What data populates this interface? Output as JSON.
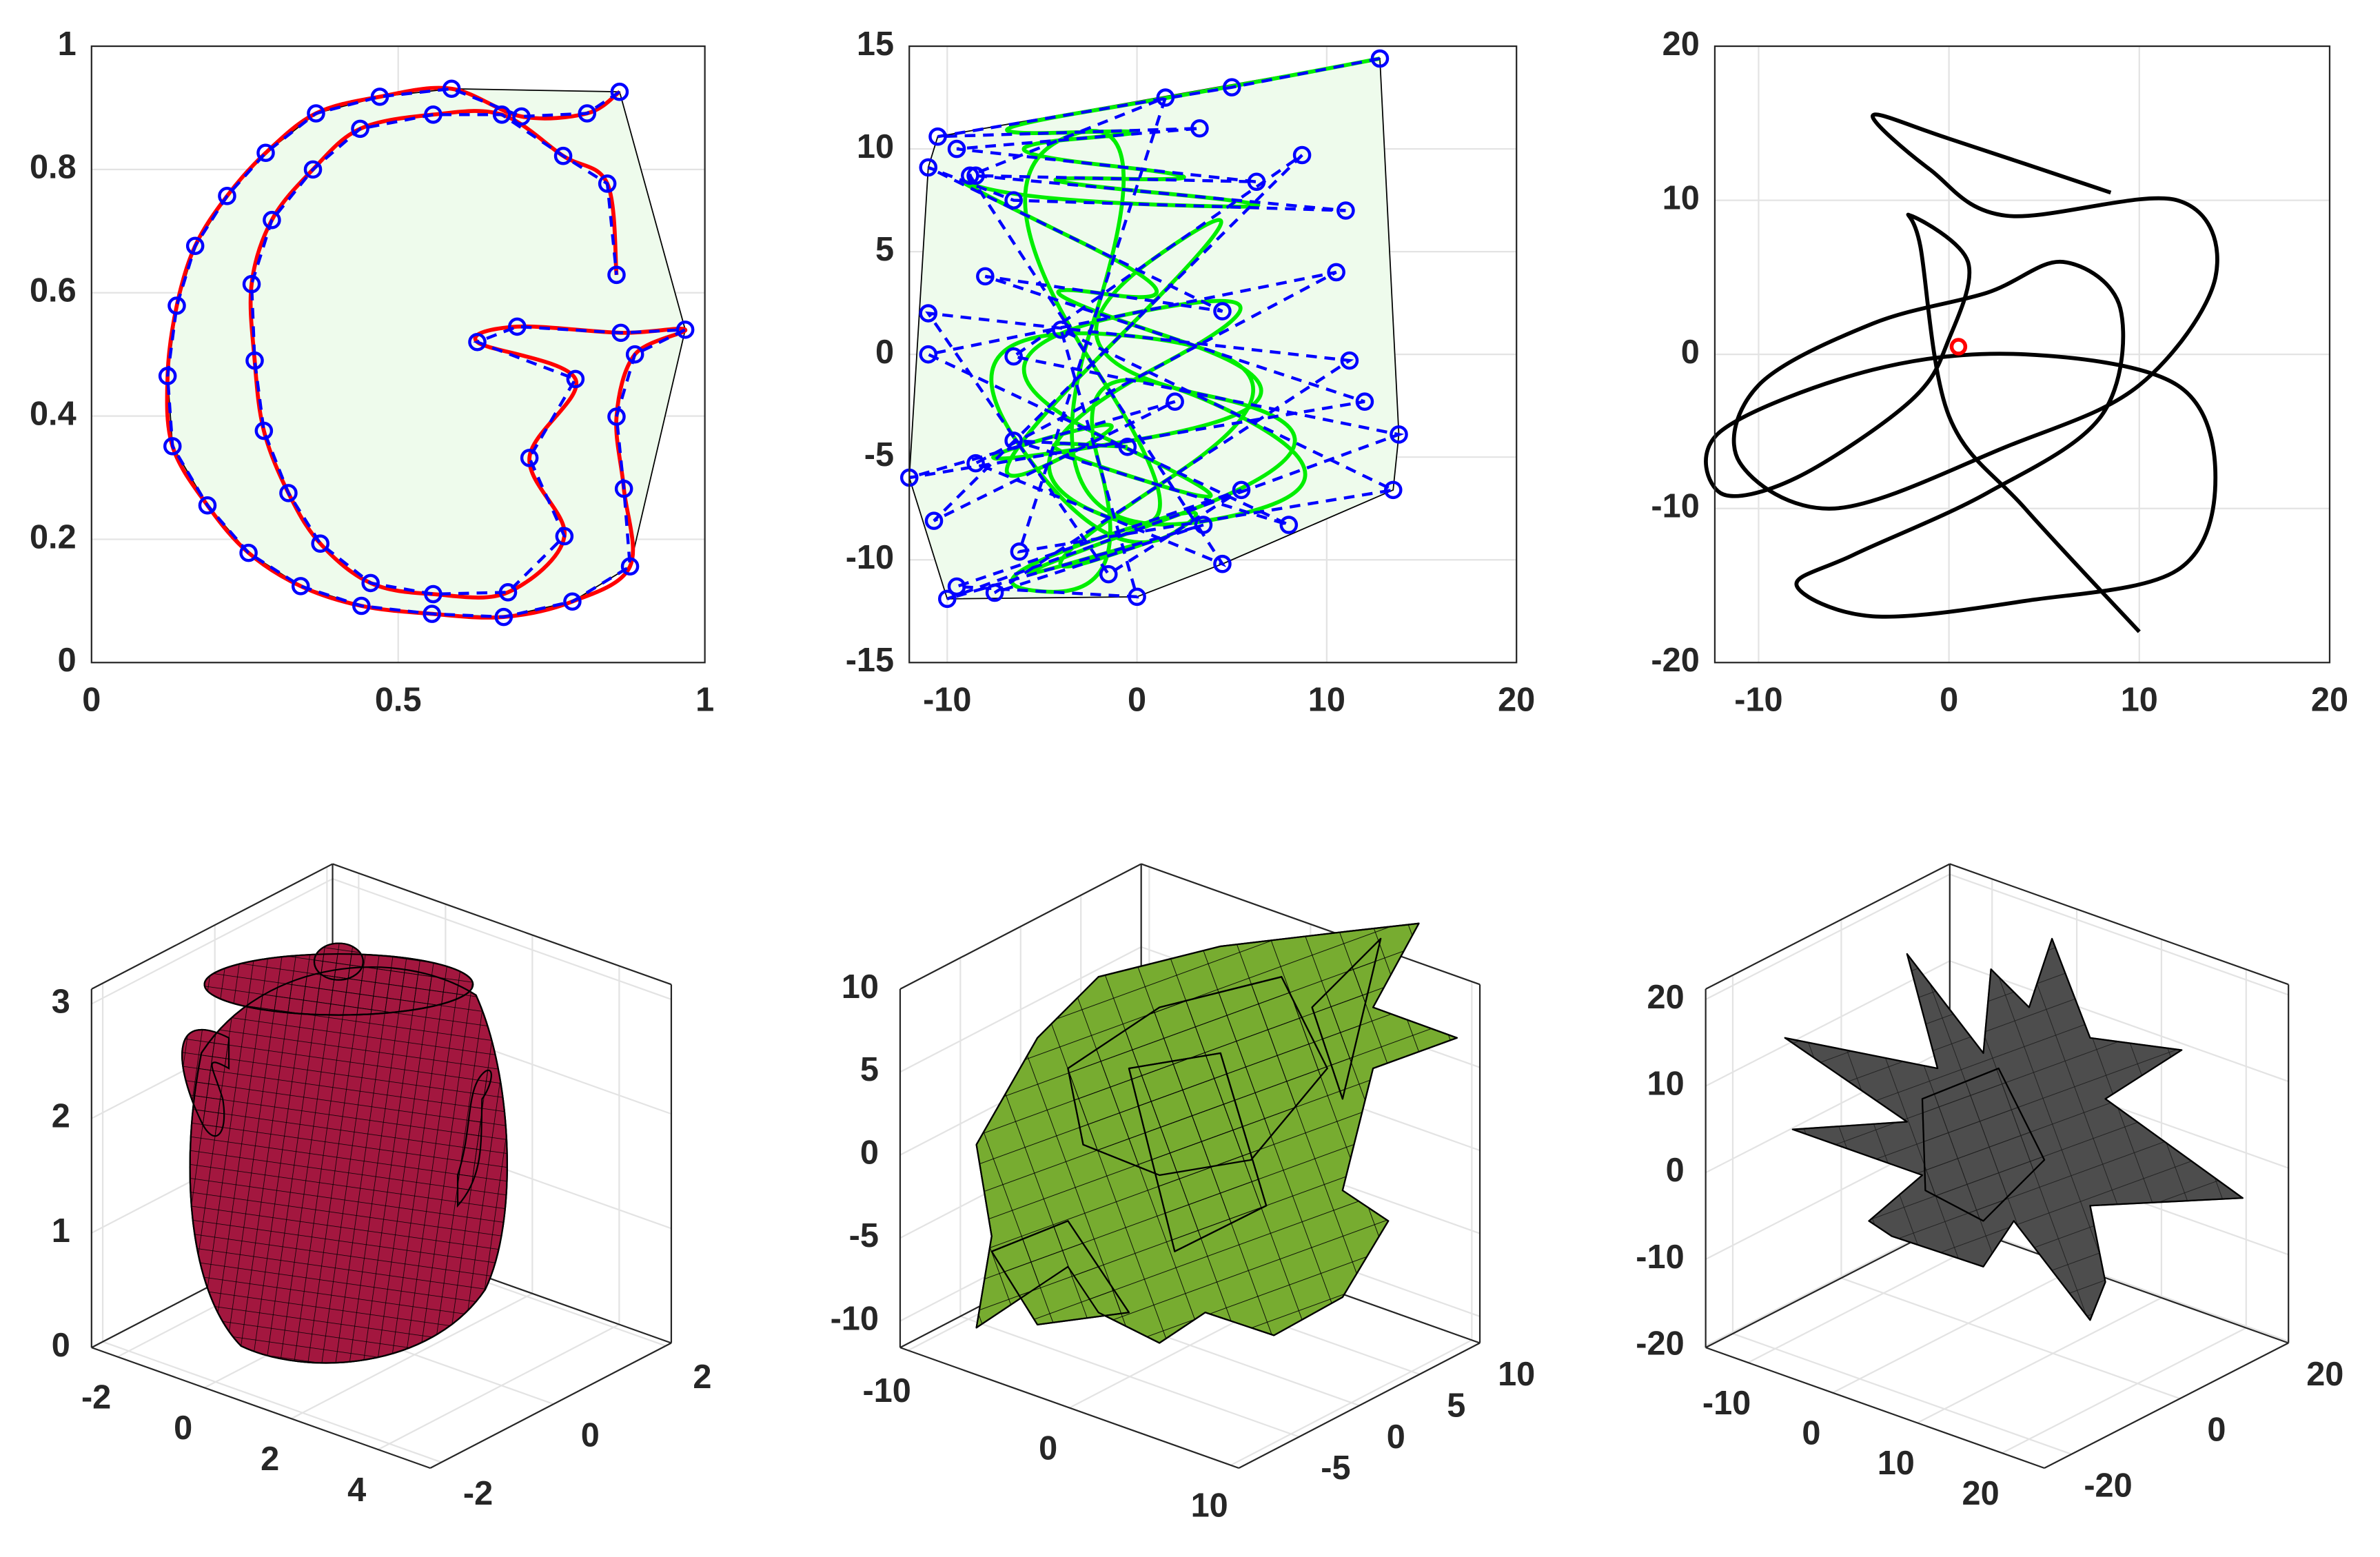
{
  "chart_data": [
    {
      "type": "line",
      "x": [
        0.861,
        0.808,
        0.701,
        0.587,
        0.47,
        0.366,
        0.284,
        0.221,
        0.169,
        0.139,
        0.124,
        0.132,
        0.189,
        0.256,
        0.341,
        0.44,
        0.555,
        0.672,
        0.784,
        0.878,
        0.868,
        0.856,
        0.886,
        0.968,
        0.863,
        0.694,
        0.629,
        0.789,
        0.714,
        0.771,
        0.679,
        0.557,
        0.455,
        0.373,
        0.321,
        0.281,
        0.266,
        0.261,
        0.294,
        0.361,
        0.438,
        0.557,
        0.669,
        0.769,
        0.841,
        0.856
      ],
      "y": [
        0.926,
        0.891,
        0.886,
        0.931,
        0.918,
        0.891,
        0.827,
        0.757,
        0.676,
        0.579,
        0.465,
        0.351,
        0.255,
        0.178,
        0.124,
        0.092,
        0.079,
        0.074,
        0.099,
        0.156,
        0.282,
        0.399,
        0.5,
        0.54,
        0.535,
        0.545,
        0.52,
        0.46,
        0.332,
        0.205,
        0.114,
        0.111,
        0.129,
        0.193,
        0.275,
        0.376,
        0.49,
        0.614,
        0.718,
        0.8,
        0.866,
        0.889,
        0.889,
        0.822,
        0.777,
        0.629
      ],
      "curve_color": "#ff0000",
      "marker_color": "#0000ff",
      "hull_color": "#eefbec",
      "spline": "interpolating",
      "xlim": [
        0,
        1
      ],
      "ylim": [
        0,
        1
      ],
      "xticks": [
        0,
        0.5,
        1
      ],
      "yticks": [
        0,
        0.2,
        0.4,
        0.6,
        0.8,
        1
      ],
      "grid": true
    },
    {
      "type": "line",
      "x": [
        12.8,
        5,
        -10.5,
        3.3,
        -9.5,
        6.3,
        -8.5,
        11,
        -6.5,
        -11,
        4.5,
        -8,
        12,
        -12,
        2,
        -10.7,
        8.7,
        -6.5,
        13.8,
        -10,
        3.5,
        -7.5,
        11.2,
        -11,
        -1.5,
        5.5,
        -9.5,
        0,
        -4,
        13.5,
        -6.2,
        1.5,
        -8.8,
        4.5,
        -8.5,
        10.5,
        -11,
        8,
        -6.5,
        -0.5
      ],
      "y": [
        14.4,
        13,
        10.6,
        11,
        10,
        8.4,
        8.7,
        7,
        7.5,
        9.1,
        2.1,
        3.8,
        -2.3,
        -6,
        -2.3,
        -8.1,
        9.7,
        -0.1,
        -3.9,
        -11.9,
        -8.3,
        -11.6,
        -0.3,
        2,
        -10.7,
        -6.6,
        -11.3,
        -11.8,
        1.2,
        -6.6,
        -9.6,
        12.5,
        8.7,
        -10.2,
        -5.3,
        4,
        0,
        -8.3,
        -4.2,
        -4.5
      ],
      "curve_color": "#00ee00",
      "marker_color": "#0000ff",
      "hull_color": "#eefbec",
      "spline": "approximating",
      "xlim": [
        -12,
        20
      ],
      "ylim": [
        -15,
        15
      ],
      "xticks": [
        -10,
        0,
        10,
        20
      ],
      "yticks": [
        -15,
        -10,
        -5,
        0,
        5,
        10,
        15
      ],
      "grid": true
    },
    {
      "type": "line",
      "x": [
        8.5,
        0,
        -4,
        -1,
        3,
        12,
        14,
        10,
        3,
        -6,
        -11,
        -10,
        -4,
        2,
        6,
        9,
        8,
        2,
        -5,
        -8,
        -4,
        4,
        12,
        14,
        12,
        4,
        -4,
        -12,
        -12,
        -8,
        -2,
        0,
        1,
        -2,
        -1.5,
        0,
        4,
        10
      ],
      "y": [
        10.5,
        14,
        15.5,
        12,
        9,
        10,
        5,
        -2,
        -6,
        -10,
        -7,
        -2,
        2,
        4,
        6,
        3,
        -4,
        -9,
        -13,
        -15,
        -17,
        -16,
        -14,
        -8,
        -2,
        0,
        -1,
        -5,
        -9,
        -8,
        -3,
        1,
        6,
        9,
        7,
        -4,
        -10,
        -18
      ],
      "curve_color": "#000000",
      "spline": "interpolating",
      "marker": {
        "x": 0.5,
        "y": 0.5,
        "color": "#ff0000"
      },
      "xlim": [
        -12.3,
        20
      ],
      "ylim": [
        -20,
        20
      ],
      "xticks": [
        -10,
        0,
        10,
        20
      ],
      "yticks": [
        -20,
        -10,
        0,
        10,
        20
      ],
      "grid": true
    },
    {
      "type": "surface3d",
      "color": "#a3173f",
      "xlim": [
        -2.6,
        5.2
      ],
      "ylim": [
        -2.2,
        2.1
      ],
      "zlim": [
        0,
        3.13
      ],
      "xticks": [
        -2,
        0,
        2,
        4
      ],
      "yticks": [
        -2,
        0,
        2
      ],
      "zticks": [
        0,
        1,
        2,
        3
      ],
      "grid": true
    },
    {
      "type": "surface3d",
      "color": "#77ac30",
      "xlim": [
        -10.5,
        10.5
      ],
      "ylim": [
        -10,
        10
      ],
      "zlim": [
        -11.6,
        10
      ],
      "xticks": [
        -10,
        0,
        10
      ],
      "yticks": [
        -5,
        0,
        5,
        10
      ],
      "zticks": [
        -10,
        -5,
        0,
        5,
        10
      ],
      "grid": true
    },
    {
      "type": "surface3d",
      "color": "#4d4d4d",
      "xlim": [
        -15,
        25
      ],
      "ylim": [
        -25,
        20
      ],
      "zlim": [
        -20.2,
        21.2
      ],
      "xticks": [
        -10,
        0,
        10,
        20
      ],
      "yticks": [
        -20,
        0,
        20
      ],
      "zticks": [
        -20,
        -10,
        0,
        10,
        20
      ],
      "grid": true
    }
  ]
}
